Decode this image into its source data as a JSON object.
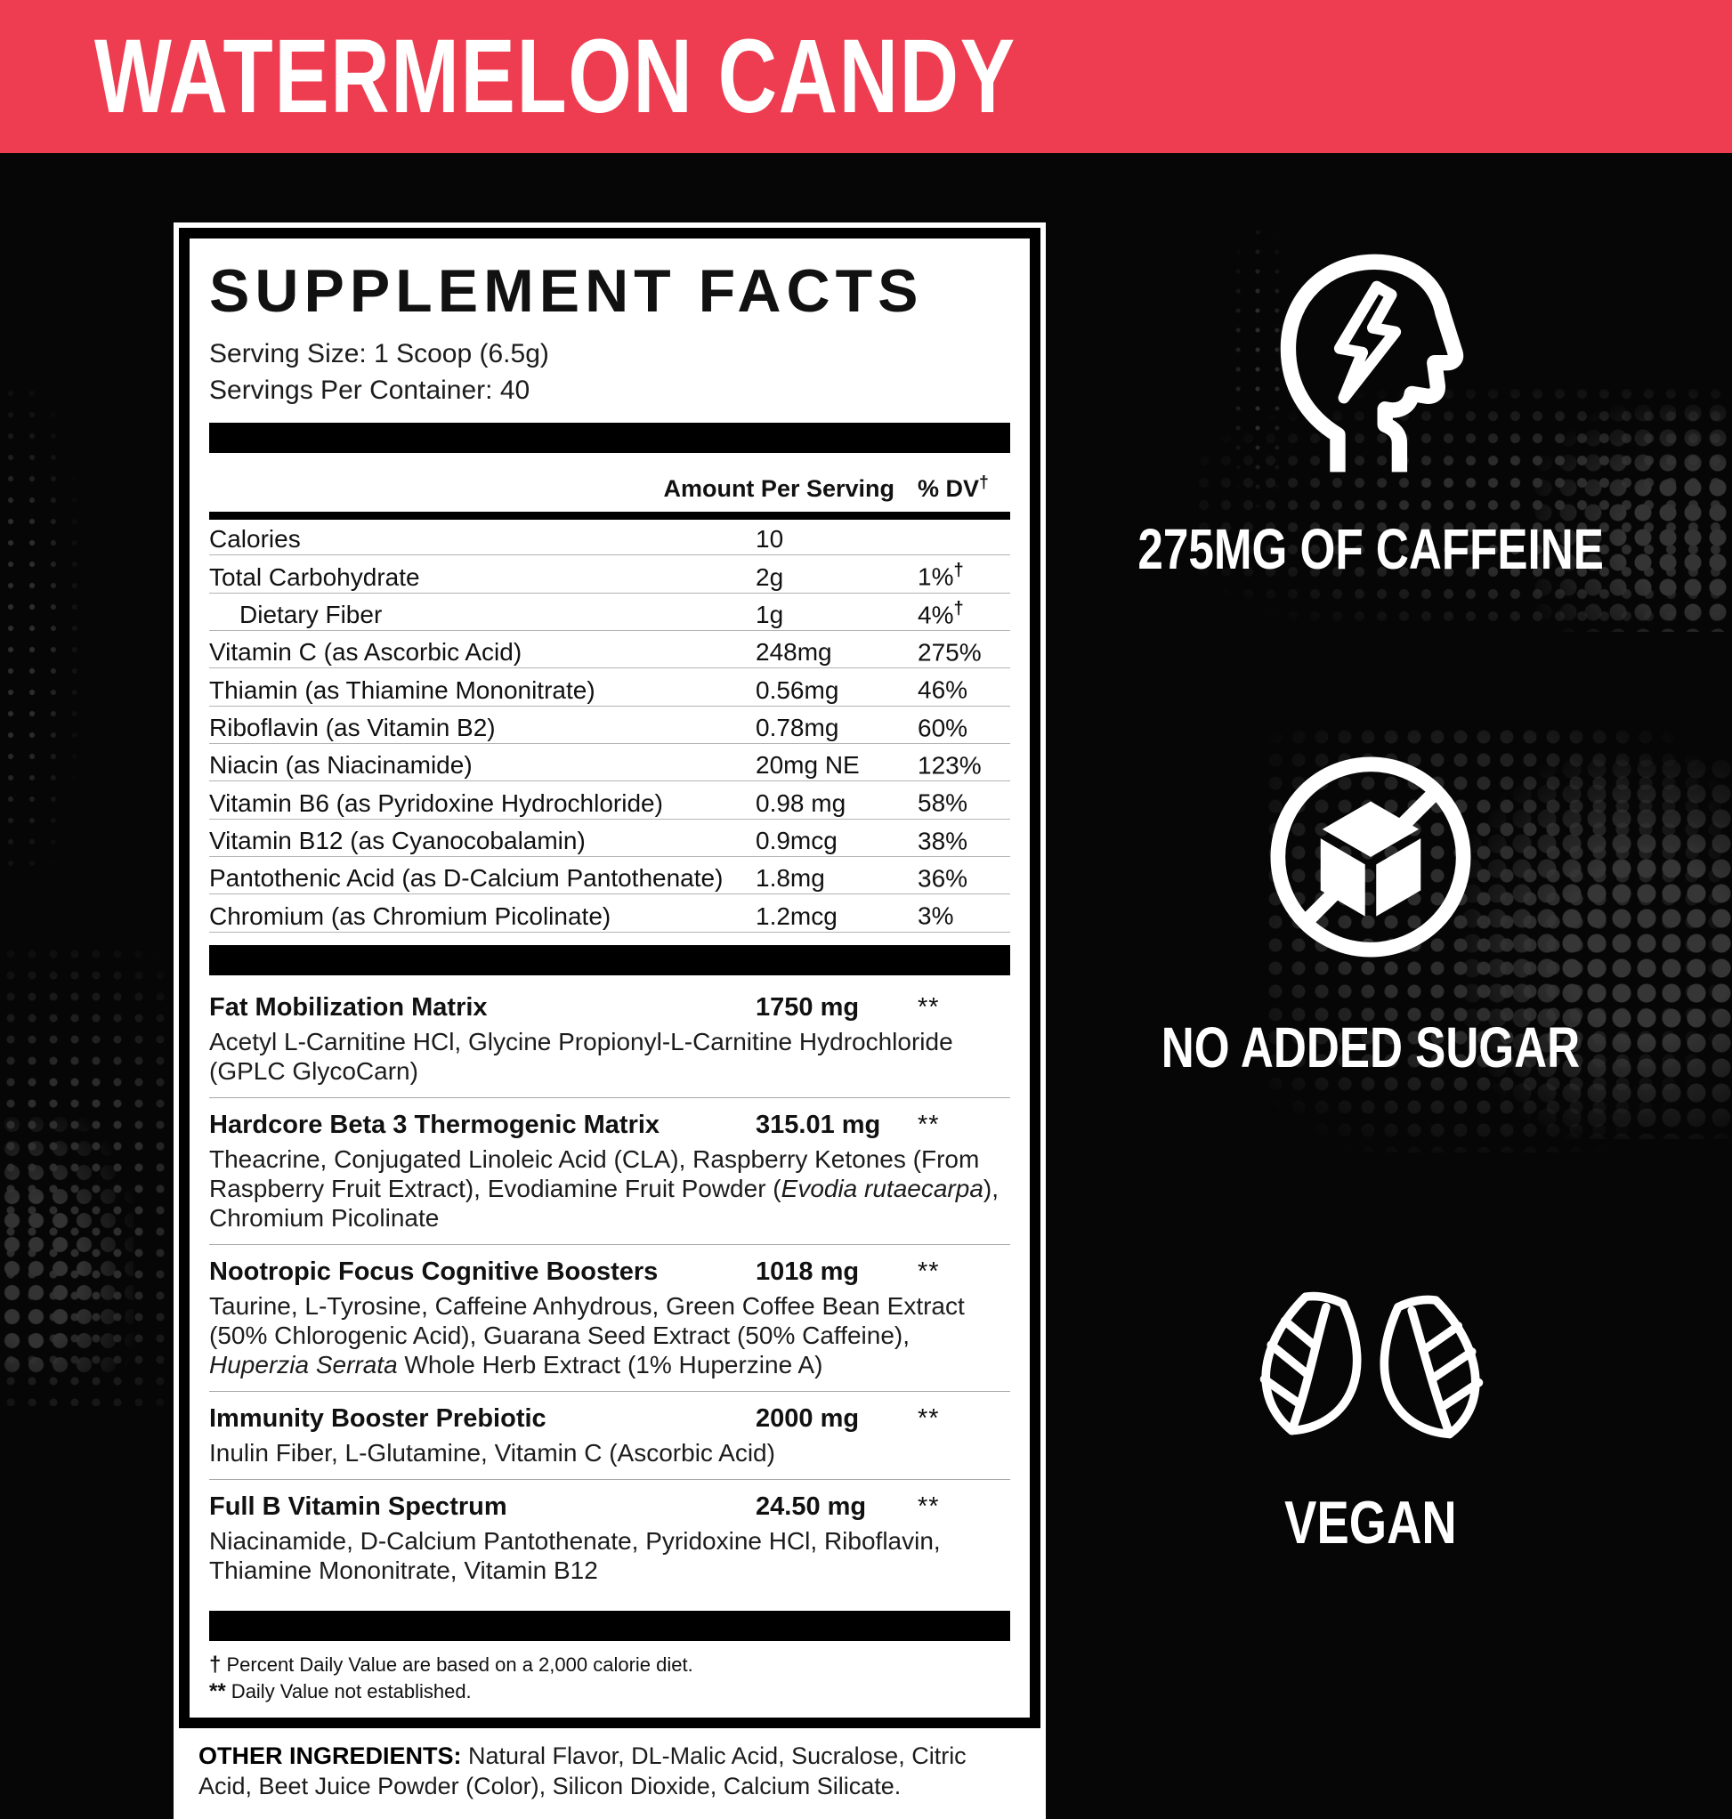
{
  "banner": {
    "title": "WATERMELON CANDY",
    "bg_color": "#EE3C50",
    "text_color": "#FFFFFF"
  },
  "panel": {
    "title": "SUPPLEMENT FACTS",
    "serving_size": "Serving Size: 1 Scoop (6.5g)",
    "servings_per_container": "Servings Per Container: 40",
    "columns": {
      "amount": "Amount Per Serving",
      "dv": "% DV",
      "dagger": "†"
    },
    "nutrients": [
      {
        "name": "Calories",
        "amount": "10",
        "dv": "",
        "dagger": ""
      },
      {
        "name": "Total Carbohydrate",
        "amount": "2g",
        "dv": "1%",
        "dagger": "†"
      },
      {
        "name": "Dietary Fiber",
        "indent": true,
        "amount": "1g",
        "dv": "4%",
        "dagger": "†"
      },
      {
        "name": "Vitamin C (as Ascorbic Acid)",
        "amount": "248mg",
        "dv": "275%",
        "dagger": ""
      },
      {
        "name": "Thiamin (as Thiamine Mononitrate)",
        "amount": "0.56mg",
        "dv": "46%",
        "dagger": ""
      },
      {
        "name": "Riboflavin (as Vitamin B2)",
        "amount": "0.78mg",
        "dv": "60%",
        "dagger": ""
      },
      {
        "name": "Niacin (as Niacinamide)",
        "amount": "20mg NE",
        "dv": "123%",
        "dagger": ""
      },
      {
        "name": "Vitamin B6 (as Pyridoxine Hydrochloride)",
        "amount": "0.98 mg",
        "dv": "58%",
        "dagger": ""
      },
      {
        "name": "Vitamin B12 (as Cyanocobalamin)",
        "amount": "0.9mcg",
        "dv": "38%",
        "dagger": ""
      },
      {
        "name": "Pantothenic Acid (as D-Calcium Pantothenate)",
        "amount": "1.8mg",
        "dv": "36%",
        "dagger": ""
      },
      {
        "name": "Chromium (as Chromium Picolinate)",
        "amount": "1.2mcg",
        "dv": "3%",
        "dagger": ""
      }
    ],
    "blends": [
      {
        "name": "Fat Mobilization Matrix",
        "amount": "1750 mg",
        "dv": "**",
        "desc": [
          {
            "t": "Acetyl L-Carnitine HCl, Glycine Propionyl-L-Carnitine Hydrochloride (GPLC GlycoCarn)"
          }
        ]
      },
      {
        "name": "Hardcore Beta 3 Thermogenic Matrix",
        "amount": "315.01 mg",
        "dv": "**",
        "desc": [
          {
            "t": "Theacrine, Conjugated Linoleic Acid (CLA), Raspberry Ketones (From Raspberry Fruit Extract), Evodiamine Fruit Powder ("
          },
          {
            "t": "Evodia rutaecarpa",
            "i": true
          },
          {
            "t": "), Chromium Picolinate"
          }
        ]
      },
      {
        "name": "Nootropic Focus Cognitive Boosters",
        "amount": "1018 mg",
        "dv": "**",
        "desc": [
          {
            "t": "Taurine, L-Tyrosine, Caffeine Anhydrous, Green Coffee Bean Extract (50% Chlorogenic Acid), Guarana Seed Extract (50% Caffeine), "
          },
          {
            "t": "Huperzia Serrata",
            "i": true
          },
          {
            "t": " Whole Herb Extract (1% Huperzine A)"
          }
        ]
      },
      {
        "name": "Immunity Booster Prebiotic",
        "amount": "2000 mg",
        "dv": "**",
        "desc": [
          {
            "t": "Inulin Fiber, L-Glutamine, Vitamin C (Ascorbic Acid)"
          }
        ]
      },
      {
        "name": "Full B Vitamin Spectrum",
        "amount": "24.50 mg",
        "dv": "**",
        "desc": [
          {
            "t": "Niacinamide, D-Calcium Pantothenate, Pyridoxine HCl, Riboflavin, Thiamine Mononitrate, Vitamin B12"
          }
        ]
      }
    ],
    "footnotes": [
      {
        "sym": "†",
        "text": " Percent Daily Value are based on a 2,000 calorie diet."
      },
      {
        "sym": "**",
        "text": " Daily Value not established."
      }
    ],
    "other_ingredients": {
      "label": "OTHER INGREDIENTS:",
      "text": " Natural Flavor, DL-Malic Acid, Sucralose, Citric Acid, Beet Juice Powder (Color), Silicon Dioxide, Calcium Silicate."
    }
  },
  "badges": [
    {
      "icon": "caffeine-head-bolt",
      "label": "275MG OF CAFFEINE"
    },
    {
      "icon": "no-added-sugar-cube",
      "label": "NO ADDED SUGAR"
    },
    {
      "icon": "vegan-leaves",
      "label": "VEGAN"
    }
  ]
}
